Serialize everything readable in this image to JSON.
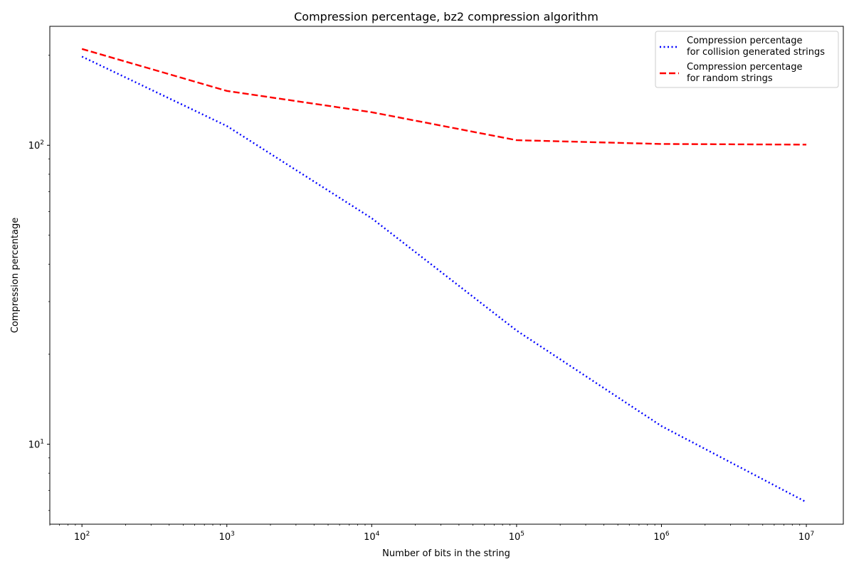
{
  "chart_data": {
    "type": "line",
    "title": "Compression percentage, bz2 compression algorithm",
    "xlabel": "Number of bits in the string",
    "ylabel": "Compression percentage",
    "xscale": "log",
    "yscale": "log",
    "xlim": [
      60,
      18000000
    ],
    "ylim": [
      5.4,
      250
    ],
    "grid": false,
    "legend_position": "top-right",
    "x_ticks": [
      {
        "base": "10",
        "exp": "2",
        "value": 100
      },
      {
        "base": "10",
        "exp": "3",
        "value": 1000
      },
      {
        "base": "10",
        "exp": "4",
        "value": 10000
      },
      {
        "base": "10",
        "exp": "5",
        "value": 100000
      },
      {
        "base": "10",
        "exp": "6",
        "value": 1000000
      },
      {
        "base": "10",
        "exp": "7",
        "value": 10000000
      }
    ],
    "y_ticks": [
      {
        "base": "10",
        "exp": "1",
        "value": 10
      },
      {
        "base": "10",
        "exp": "2",
        "value": 100
      }
    ],
    "x": [
      100,
      1000,
      10000,
      100000,
      1000000,
      10000000
    ],
    "series": [
      {
        "name": "Compression percentage\nfor collision generated strings",
        "values": [
          198,
          116,
          57,
          24,
          11.5,
          6.4
        ],
        "color": "#0000ff",
        "style": "dotted"
      },
      {
        "name": "Compression percentage\nfor random strings",
        "values": [
          210,
          152,
          129,
          104,
          101,
          100.5
        ],
        "color": "#ff0000",
        "style": "dashed"
      }
    ]
  }
}
